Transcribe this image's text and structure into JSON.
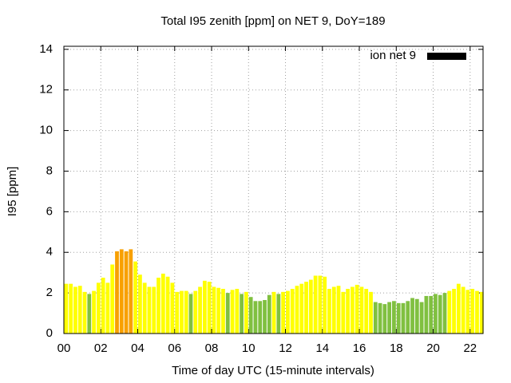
{
  "chart_data": {
    "type": "bar",
    "title": "Total I95 zenith [ppm] on NET 9, DoY=189",
    "x_label": "Time of day UTC (15-minute intervals)",
    "y_label": "I95 [ppm]",
    "series": [
      {
        "name": "ion net 9",
        "color": "#000000",
        "x": [
          0,
          0.25,
          0.5,
          0.75,
          1,
          1.25,
          1.5,
          1.75,
          2,
          2.25,
          2.5,
          2.75,
          3,
          3.25,
          3.5,
          3.75,
          4,
          4.25,
          4.5,
          4.75,
          5,
          5.25,
          5.5,
          5.75,
          6,
          6.25,
          6.5,
          6.75,
          7,
          7.25,
          7.5,
          7.75,
          8,
          8.25,
          8.5,
          8.75,
          9,
          9.25,
          9.5,
          9.75,
          10,
          10.25,
          10.5,
          10.75,
          11,
          11.25,
          11.5,
          11.75,
          12,
          12.25,
          12.5,
          12.75,
          13,
          13.25,
          13.5,
          13.75,
          14,
          14.25,
          14.5,
          14.75,
          15,
          15.25,
          15.5,
          15.75,
          16,
          16.25,
          16.5,
          16.75,
          17,
          17.25,
          17.5,
          17.75,
          18,
          18.25,
          18.5,
          18.75,
          19,
          19.25,
          19.5,
          19.75,
          20,
          20.25,
          20.5,
          20.75,
          21,
          21.25,
          21.5,
          21.75,
          22,
          22.25,
          22.5
        ],
        "values": [
          2.45,
          2.45,
          2.3,
          2.35,
          2.05,
          1.95,
          2.1,
          2.5,
          2.75,
          2.5,
          3.4,
          4.05,
          4.15,
          4.05,
          4.15,
          3.55,
          2.9,
          2.5,
          2.3,
          2.3,
          2.75,
          2.95,
          2.8,
          2.5,
          2.05,
          2.1,
          2.1,
          1.95,
          2.1,
          2.3,
          2.6,
          2.55,
          2.3,
          2.25,
          2.2,
          2.0,
          2.15,
          2.2,
          1.95,
          2.05,
          1.8,
          1.6,
          1.6,
          1.65,
          1.9,
          2.05,
          1.95,
          2.05,
          2.1,
          2.2,
          2.35,
          2.45,
          2.55,
          2.65,
          2.85,
          2.85,
          2.8,
          2.2,
          2.3,
          2.35,
          2.05,
          2.2,
          2.3,
          2.4,
          2.3,
          2.2,
          2.05,
          1.55,
          1.5,
          1.45,
          1.55,
          1.6,
          1.5,
          1.5,
          1.6,
          1.75,
          1.7,
          1.55,
          1.85,
          1.85,
          1.95,
          1.9,
          2.0,
          2.1,
          2.2,
          2.45,
          2.3,
          2.15,
          2.2,
          2.1,
          2.05
        ],
        "colors": [
          "#ffff00",
          "#ffff00",
          "#ffff00",
          "#ffff00",
          "#ffff00",
          "#80c040",
          "#ffff00",
          "#ffff00",
          "#ffff00",
          "#ffff00",
          "#ffff00",
          "#f8a000",
          "#f8a000",
          "#f8a000",
          "#f8a000",
          "#ffff00",
          "#ffff00",
          "#ffff00",
          "#ffff00",
          "#ffff00",
          "#ffff00",
          "#ffff00",
          "#ffff00",
          "#ffff00",
          "#ffff00",
          "#ffff00",
          "#ffff00",
          "#80c040",
          "#ffff00",
          "#ffff00",
          "#ffff00",
          "#ffff00",
          "#ffff00",
          "#ffff00",
          "#ffff00",
          "#80c040",
          "#ffff00",
          "#ffff00",
          "#80c040",
          "#ffff00",
          "#80c040",
          "#80c040",
          "#80c040",
          "#80c040",
          "#80c040",
          "#ffff00",
          "#80c040",
          "#ffff00",
          "#ffff00",
          "#ffff00",
          "#ffff00",
          "#ffff00",
          "#ffff00",
          "#ffff00",
          "#ffff00",
          "#ffff00",
          "#ffff00",
          "#ffff00",
          "#ffff00",
          "#ffff00",
          "#ffff00",
          "#ffff00",
          "#ffff00",
          "#ffff00",
          "#ffff00",
          "#ffff00",
          "#ffff00",
          "#80c040",
          "#80c040",
          "#80c040",
          "#80c040",
          "#80c040",
          "#80c040",
          "#80c040",
          "#80c040",
          "#80c040",
          "#80c040",
          "#80c040",
          "#80c040",
          "#80c040",
          "#80c040",
          "#80c040",
          "#80c040",
          "#ffff00",
          "#ffff00",
          "#ffff00",
          "#ffff00",
          "#ffff00",
          "#ffff00",
          "#ffff00",
          "#ffff00"
        ]
      }
    ],
    "bar_width": 0.25,
    "xlim": [
      0,
      22.7
    ],
    "xticks": [
      {
        "value": 0,
        "label": "00"
      },
      {
        "value": 2,
        "label": "02"
      },
      {
        "value": 4,
        "label": "04"
      },
      {
        "value": 6,
        "label": "06"
      },
      {
        "value": 8,
        "label": "08"
      },
      {
        "value": 10,
        "label": "10"
      },
      {
        "value": 12,
        "label": "12"
      },
      {
        "value": 14,
        "label": "14"
      },
      {
        "value": 16,
        "label": "16"
      },
      {
        "value": 18,
        "label": "18"
      },
      {
        "value": 20,
        "label": "20"
      },
      {
        "value": 22,
        "label": "22"
      }
    ],
    "ylim": [
      0,
      14.15
    ],
    "yticks": [
      0,
      2,
      4,
      6,
      8,
      10,
      12,
      14
    ],
    "grid": true,
    "legend": "top-right"
  }
}
